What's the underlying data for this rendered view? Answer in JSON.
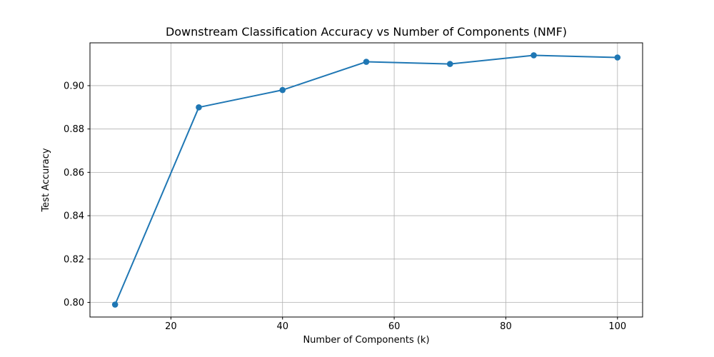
{
  "chart_data": {
    "type": "line",
    "title": "Downstream Classification Accuracy vs Number of Components (NMF)",
    "xlabel": "Number of Components (k)",
    "ylabel": "Test Accuracy",
    "x": [
      10,
      25,
      40,
      55,
      70,
      85,
      100
    ],
    "y": [
      0.799,
      0.89,
      0.898,
      0.911,
      0.91,
      0.914,
      0.913
    ],
    "series": [
      {
        "name": "Test Accuracy",
        "x": [
          10,
          25,
          40,
          55,
          70,
          85,
          100
        ],
        "y": [
          0.799,
          0.89,
          0.898,
          0.911,
          0.91,
          0.914,
          0.913
        ]
      }
    ],
    "xticks": [
      20,
      40,
      60,
      80,
      100
    ],
    "xtick_labels": [
      "20",
      "40",
      "60",
      "80",
      "100"
    ],
    "yticks": [
      0.8,
      0.82,
      0.84,
      0.86,
      0.88,
      0.9
    ],
    "ytick_labels": [
      "0.80",
      "0.82",
      "0.84",
      "0.86",
      "0.88",
      "0.90"
    ],
    "xlim": [
      5.5,
      104.5
    ],
    "ylim": [
      0.79325,
      0.91975
    ],
    "grid": true,
    "legend": null,
    "marker": "o",
    "colors": {
      "line": "#1f77b4",
      "marker": "#1f77b4",
      "grid": "#b0b0b0",
      "spine": "#000000",
      "background": "#ffffff"
    }
  }
}
